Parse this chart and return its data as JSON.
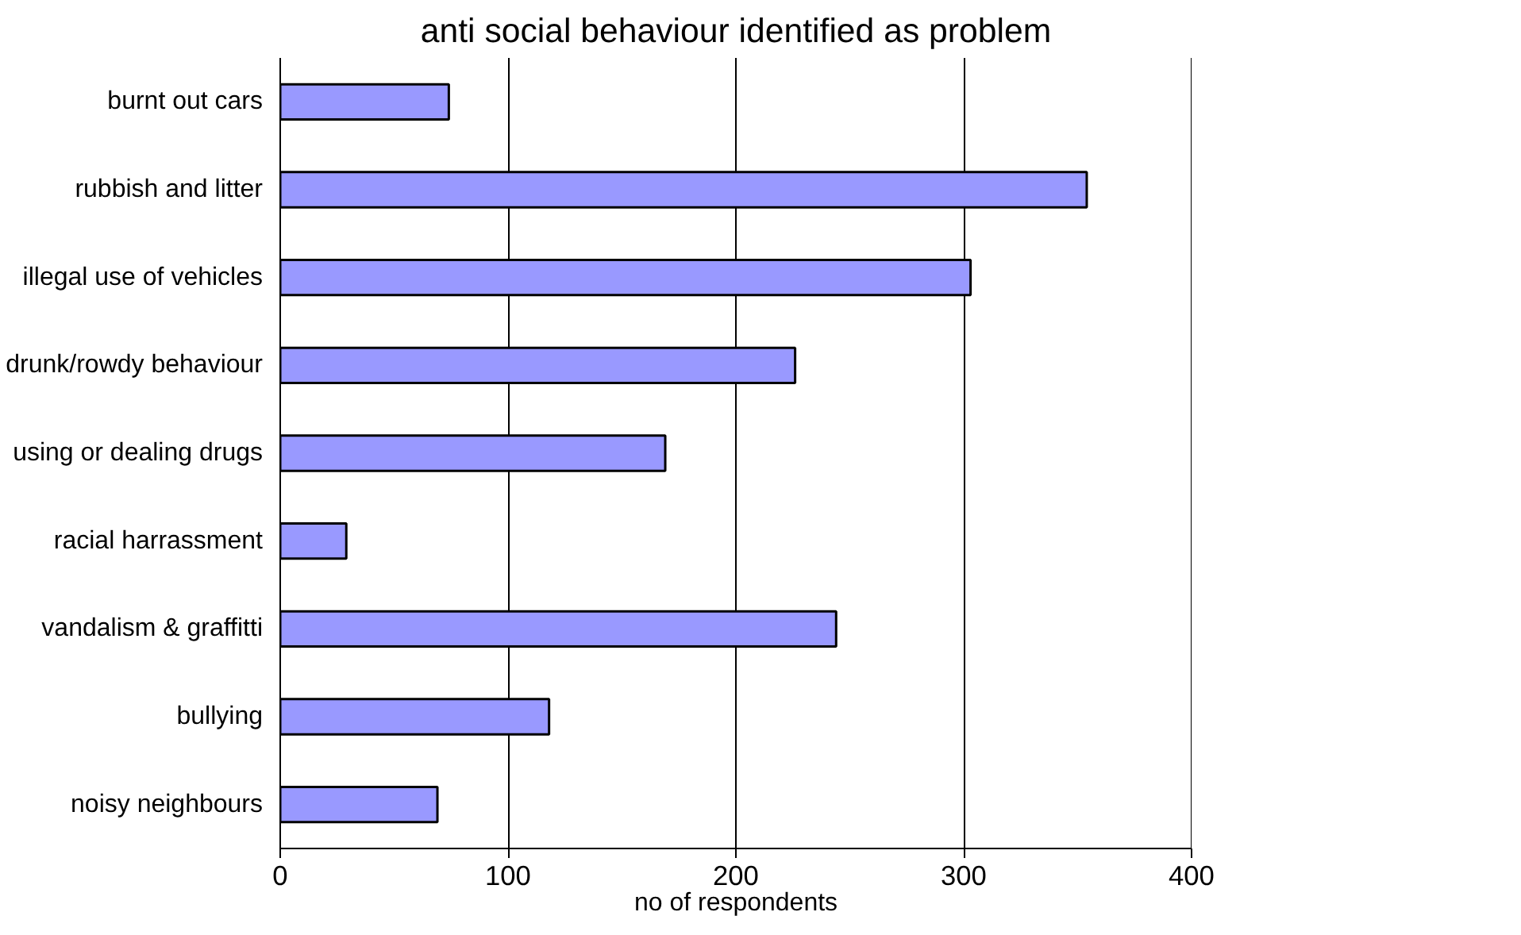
{
  "chart_data": {
    "type": "bar",
    "orientation": "horizontal",
    "title": "anti social behaviour identified as problem",
    "xlabel": "no of respondents",
    "categories": [
      "burnt out cars",
      "rubbish and litter",
      "illegal use of vehicles",
      "drunk/rowdy behaviour",
      "using or dealing drugs",
      "racial harrassment",
      "vandalism & graffitti",
      "bullying",
      "noisy neighbours"
    ],
    "values": [
      74,
      354,
      303,
      226,
      169,
      29,
      244,
      118,
      69
    ],
    "color": "#9999ff",
    "xlim": [
      0,
      400
    ],
    "xticks": [
      0,
      100,
      200,
      300,
      400
    ],
    "grid": "x"
  }
}
